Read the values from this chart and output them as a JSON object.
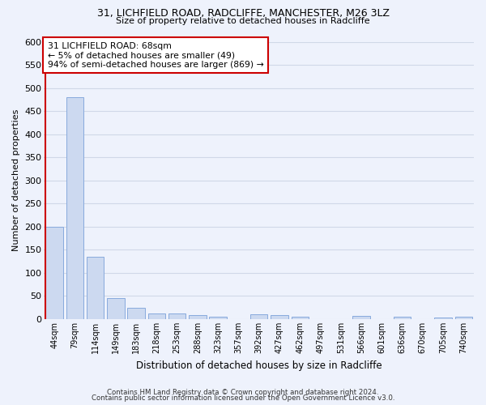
{
  "title1": "31, LICHFIELD ROAD, RADCLIFFE, MANCHESTER, M26 3LZ",
  "title2": "Size of property relative to detached houses in Radcliffe",
  "xlabel": "Distribution of detached houses by size in Radcliffe",
  "ylabel": "Number of detached properties",
  "bar_labels": [
    "44sqm",
    "79sqm",
    "114sqm",
    "149sqm",
    "183sqm",
    "218sqm",
    "253sqm",
    "288sqm",
    "323sqm",
    "357sqm",
    "392sqm",
    "427sqm",
    "462sqm",
    "497sqm",
    "531sqm",
    "566sqm",
    "601sqm",
    "636sqm",
    "670sqm",
    "705sqm",
    "740sqm"
  ],
  "bar_values": [
    200,
    480,
    135,
    46,
    25,
    13,
    12,
    8,
    5,
    0,
    10,
    8,
    5,
    0,
    0,
    7,
    0,
    5,
    0,
    3,
    5
  ],
  "bar_color": "#ccd9f0",
  "bar_edgecolor": "#88aadd",
  "background_color": "#eef2fc",
  "grid_color": "#d0d8e8",
  "annotation_text": "31 LICHFIELD ROAD: 68sqm\n← 5% of detached houses are smaller (49)\n94% of semi-detached houses are larger (869) →",
  "annotation_box_color": "#ffffff",
  "annotation_edge_color": "#cc0000",
  "redline_color": "#cc0000",
  "ylim": [
    0,
    600
  ],
  "yticks": [
    0,
    50,
    100,
    150,
    200,
    250,
    300,
    350,
    400,
    450,
    500,
    550,
    600
  ],
  "footer1": "Contains HM Land Registry data © Crown copyright and database right 2024.",
  "footer2": "Contains public sector information licensed under the Open Government Licence v3.0."
}
